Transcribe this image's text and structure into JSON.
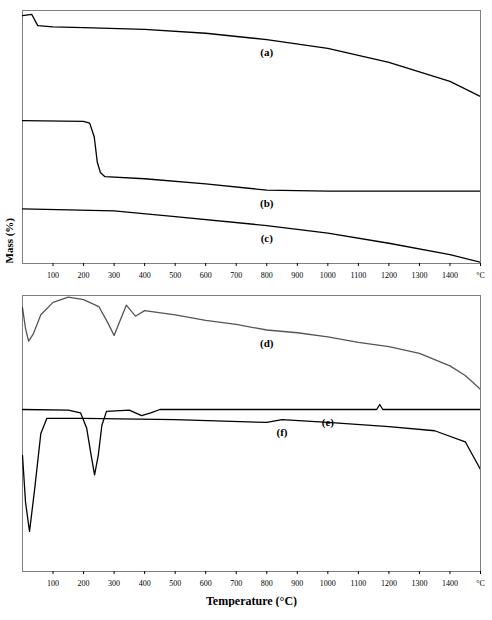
{
  "chart_data": [
    {
      "type": "line",
      "ylabel": "Mass (%)",
      "xlim": [
        0,
        1500
      ],
      "xticks": [
        100,
        200,
        300,
        400,
        500,
        600,
        700,
        800,
        900,
        1000,
        1100,
        1200,
        1300,
        1400,
        {
          "value": 1500,
          "label": "°C"
        }
      ],
      "ylim": [
        0,
        100
      ],
      "tick_labels": "x",
      "series": [
        {
          "name": "(a)",
          "color": "#000000",
          "x": [
            0,
            30,
            50,
            100,
            200,
            400,
            600,
            800,
            1000,
            1200,
            1400,
            1500
          ],
          "values": [
            98,
            98.5,
            94,
            93.5,
            93.2,
            92.5,
            91,
            88.5,
            85,
            79.5,
            72,
            66
          ]
        },
        {
          "name": "(b)",
          "color": "#000000",
          "x": [
            0,
            200,
            220,
            235,
            245,
            255,
            270,
            400,
            600,
            800,
            1000,
            1500
          ],
          "values": [
            56.5,
            56.2,
            55.5,
            50,
            40,
            36,
            34.3,
            33.5,
            31.5,
            29,
            28.6,
            28.6
          ]
        },
        {
          "name": "(c)",
          "color": "#000000",
          "x": [
            0,
            300,
            500,
            800,
            1000,
            1200,
            1400,
            1500
          ],
          "values": [
            21.6,
            20.8,
            18.5,
            15,
            12,
            8,
            3.5,
            0.5
          ]
        }
      ]
    },
    {
      "type": "line",
      "xlabel": "Temperature (°C)",
      "xlim": [
        0,
        1500
      ],
      "xticks": [
        100,
        200,
        300,
        400,
        500,
        600,
        700,
        800,
        900,
        1000,
        1100,
        1200,
        1300,
        1400,
        {
          "value": 1500,
          "label": "°C"
        }
      ],
      "ylim": [
        0,
        100
      ],
      "tick_labels": "x",
      "series": [
        {
          "name": "(d)",
          "color": "#555555",
          "x": [
            0,
            10,
            20,
            35,
            60,
            100,
            150,
            200,
            250,
            280,
            300,
            320,
            340,
            370,
            400,
            500,
            600,
            700,
            800,
            900,
            1000,
            1100,
            1200,
            1300,
            1400,
            1450,
            1500
          ],
          "values": [
            95.5,
            88,
            83.5,
            86,
            93,
            97.5,
            99.4,
            98.5,
            96,
            90,
            85.5,
            91,
            96.5,
            92.5,
            94.5,
            93,
            91,
            89.5,
            87.5,
            86.5,
            85,
            83,
            81.5,
            79,
            74.5,
            71,
            66
          ]
        },
        {
          "name": "(e)",
          "color": "#000000",
          "x": [
            0,
            150,
            190,
            210,
            225,
            236,
            248,
            260,
            275,
            350,
            390,
            420,
            450,
            1000,
            1160,
            1170,
            1180,
            1500
          ],
          "values": [
            58.7,
            58.5,
            57.5,
            52,
            42,
            35,
            42,
            53,
            58,
            58.5,
            56.5,
            57.5,
            58.7,
            58.7,
            58.7,
            60.5,
            58.7,
            58.7
          ]
        },
        {
          "name": "(f)",
          "color": "#000000",
          "x": [
            0,
            10,
            23,
            40,
            60,
            80,
            200,
            500,
            800,
            850,
            1000,
            1200,
            1350,
            1450,
            1500
          ],
          "values": [
            42,
            25,
            14.5,
            30,
            50,
            55.5,
            55.5,
            55,
            54,
            55,
            54,
            52.5,
            51,
            47,
            37
          ]
        }
      ]
    }
  ]
}
